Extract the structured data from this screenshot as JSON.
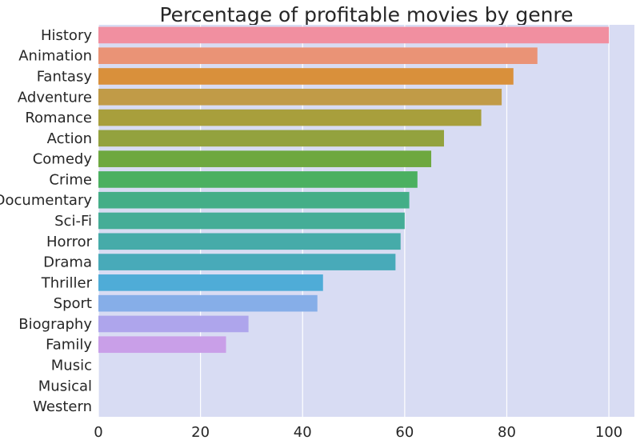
{
  "chart_data": {
    "type": "bar",
    "orientation": "horizontal",
    "title": "Percentage of profitable movies by genre",
    "xlabel": "",
    "ylabel": "",
    "xlim": [
      0,
      105
    ],
    "xticks": [
      "0",
      "20",
      "40",
      "60",
      "80",
      "100"
    ],
    "grid": true,
    "background": "#d8dcf3",
    "categories": [
      "History",
      "Animation",
      "Fantasy",
      "Adventure",
      "Romance",
      "Action",
      "Comedy",
      "Crime",
      "Documentary",
      "Sci-Fi",
      "Horror",
      "Drama",
      "Thriller",
      "Sport",
      "Biography",
      "Family",
      "Music",
      "Musical",
      "Western"
    ],
    "values": [
      100,
      86,
      81.3,
      79,
      75,
      67.7,
      65.2,
      62.5,
      60.9,
      60,
      59.2,
      58.2,
      44,
      42.9,
      29.4,
      25,
      0,
      0,
      0
    ],
    "colors": [
      "#f18fa0",
      "#ea9376",
      "#d9903b",
      "#c19b47",
      "#a89f3c",
      "#93a23e",
      "#6ea83f",
      "#4bb060",
      "#44ae87",
      "#45ad97",
      "#46aba9",
      "#48aab9",
      "#4facd7",
      "#86aee8",
      "#aea5ec",
      "#c99fe8",
      "#e59bd9",
      "#ee97c6",
      "#f396b4"
    ]
  }
}
